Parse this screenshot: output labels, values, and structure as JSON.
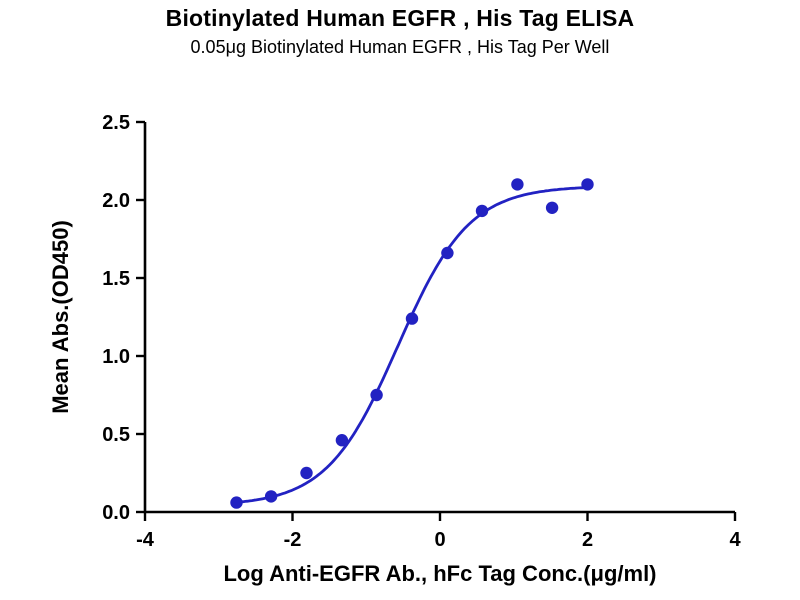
{
  "chart_data": {
    "type": "scatter",
    "subtype": "sigmoidal-dose-response-fit",
    "title": "Biotinylated Human EGFR , His Tag ELISA",
    "subtitle": "0.05μg Biotinylated Human EGFR , His Tag Per Well",
    "xlabel": "Log Anti-EGFR Ab., hFc Tag Conc.(μg/ml)",
    "ylabel": "Mean Abs.(OD450)",
    "xlim": [
      -4,
      4
    ],
    "ylim": [
      0,
      2.5
    ],
    "grid": false,
    "legend": "none",
    "xticks": [
      {
        "value": -4,
        "label": "-4"
      },
      {
        "value": -2,
        "label": "-2"
      },
      {
        "value": 0,
        "label": "0"
      },
      {
        "value": 2,
        "label": "2"
      },
      {
        "value": 4,
        "label": "4"
      }
    ],
    "yticks": [
      {
        "value": 0,
        "label": "0.0"
      },
      {
        "value": 0.5,
        "label": "0.5"
      },
      {
        "value": 1,
        "label": "1.0"
      },
      {
        "value": 1.5,
        "label": "1.5"
      },
      {
        "value": 2,
        "label": "2.0"
      },
      {
        "value": 2.5,
        "label": "2.5"
      }
    ],
    "points": [
      {
        "x": -2.76,
        "y": 0.06
      },
      {
        "x": -2.29,
        "y": 0.1
      },
      {
        "x": -1.81,
        "y": 0.25
      },
      {
        "x": -1.33,
        "y": 0.46
      },
      {
        "x": -0.86,
        "y": 0.75
      },
      {
        "x": -0.38,
        "y": 1.24
      },
      {
        "x": 0.1,
        "y": 1.66
      },
      {
        "x": 0.57,
        "y": 1.93
      },
      {
        "x": 1.05,
        "y": 2.1
      },
      {
        "x": 1.52,
        "y": 1.95
      },
      {
        "x": 2.0,
        "y": 2.1
      }
    ],
    "fit_curve": {
      "model": "4PL",
      "bottom": 0.04,
      "top": 2.09,
      "log_ec50": -0.57,
      "hill": 0.9,
      "x_start": -2.76,
      "x_end": 2.0
    },
    "colors": {
      "series": "#2222c2",
      "axis": "#000000",
      "text": "#000000",
      "background": "#ffffff"
    },
    "marker_radius": 6.2
  }
}
